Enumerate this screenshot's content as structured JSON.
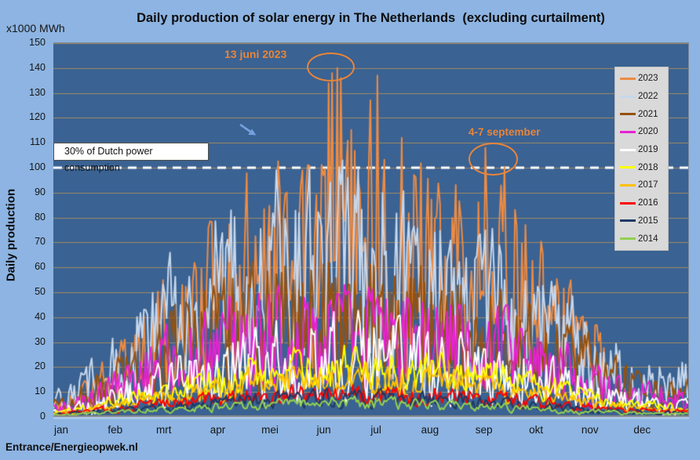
{
  "title": "Daily production of solar energy in The Netherlands  (excluding curtailment)",
  "y_axis_unit": "x1000 MWh",
  "y_axis_title": "Daily production",
  "credit": "Entrance/Energieopwek.nl",
  "colors": {
    "page_bg": "#8DB4E2",
    "plot_bg": "#3A6292",
    "gridline": "#A18A64",
    "reference_line": "#FFFFFF",
    "annotation": "#E8853A",
    "legend_bg": "#D9D9D9",
    "arrow": "#74A1DC",
    "text": "#111111"
  },
  "chart_data": {
    "type": "line",
    "title": "Daily production of solar energy in The Netherlands  (excluding curtailment)",
    "x_categories": [
      "jan",
      "feb",
      "mrt",
      "apr",
      "mei",
      "jun",
      "jul",
      "aug",
      "sep",
      "okt",
      "nov",
      "dec"
    ],
    "month_start_days": [
      0,
      31,
      59,
      90,
      120,
      151,
      181,
      212,
      243,
      273,
      304,
      334
    ],
    "y_ticks": [
      0,
      10,
      20,
      30,
      40,
      50,
      60,
      70,
      80,
      90,
      100,
      110,
      120,
      130,
      140,
      150
    ],
    "ylim": [
      0,
      150
    ],
    "ylabel": "Daily production",
    "y_unit": "x1000 MWh",
    "grid": "horizontal",
    "legend_position": "right-top",
    "reference_line": {
      "value": 100,
      "label": "30% of Dutch power consumption",
      "style": "white-dashed"
    },
    "annotations": [
      {
        "text": "13 juni 2023",
        "target": "2023 peak of ~140 x1000 MWh around 13 June"
      },
      {
        "text": "4-7 september",
        "target": "2023 peak of ~110 x1000 MWh crossing the 100 line on 4-7 September"
      }
    ],
    "note": "Daily curves are dense; values below are estimated monthly maximum envelopes (x1000 MWh) read from the chart. Daily wiggle is synthesized deterministically from these envelopes.",
    "series": [
      {
        "name": "2023",
        "color": "#ED8B43",
        "seed": 2023,
        "end_day": 318,
        "monthly_max": [
          12,
          42,
          68,
          110,
          128,
          140,
          137,
          112,
          112,
          68,
          38,
          0
        ],
        "highlights": [
          {
            "day": 158,
            "value": 134
          },
          {
            "day": 160,
            "value": 138
          },
          {
            "day": 163,
            "value": 140
          },
          {
            "day": 165,
            "value": 136
          },
          {
            "day": 186,
            "value": 137
          },
          {
            "day": 246,
            "value": 105
          },
          {
            "day": 247,
            "value": 112
          },
          {
            "day": 248,
            "value": 108
          }
        ]
      },
      {
        "name": "2022",
        "color": "#C6D7EC",
        "seed": 2022,
        "monthly_max": [
          20,
          48,
          75,
          98,
          108,
          110,
          108,
          100,
          78,
          60,
          38,
          26
        ]
      },
      {
        "name": "2021",
        "color": "#96520F",
        "seed": 2021,
        "monthly_max": [
          14,
          32,
          55,
          65,
          72,
          72,
          68,
          64,
          58,
          48,
          28,
          18
        ]
      },
      {
        "name": "2020",
        "color": "#E822D4",
        "seed": 2020,
        "monthly_max": [
          10,
          26,
          46,
          54,
          58,
          60,
          58,
          52,
          48,
          38,
          20,
          14
        ]
      },
      {
        "name": "2019",
        "color": "#FFFFFF",
        "seed": 2019,
        "monthly_max": [
          7,
          18,
          30,
          38,
          43,
          45,
          44,
          40,
          33,
          25,
          13,
          8
        ]
      },
      {
        "name": "2018",
        "color": "#FFFF00",
        "seed": 2018,
        "monthly_max": [
          5,
          13,
          22,
          30,
          33,
          34,
          33,
          30,
          26,
          18,
          10,
          7
        ]
      },
      {
        "name": "2017",
        "color": "#FFC000",
        "seed": 2017,
        "monthly_max": [
          4,
          10,
          16,
          22,
          25,
          26,
          25,
          23,
          18,
          13,
          8,
          5
        ]
      },
      {
        "name": "2016",
        "color": "#FF0000",
        "seed": 2016,
        "monthly_max": [
          3,
          7,
          11,
          14,
          15,
          16,
          15,
          14,
          12,
          9,
          5,
          4
        ]
      },
      {
        "name": "2015",
        "color": "#1F3864",
        "seed": 2015,
        "monthly_max": [
          3,
          5,
          8,
          11,
          12,
          13,
          12,
          11,
          9,
          7,
          4,
          3
        ]
      },
      {
        "name": "2014",
        "color": "#92D050",
        "seed": 2014,
        "monthly_max": [
          2,
          4,
          6,
          8,
          9,
          10,
          9,
          8,
          7,
          5,
          3,
          2
        ]
      }
    ]
  }
}
